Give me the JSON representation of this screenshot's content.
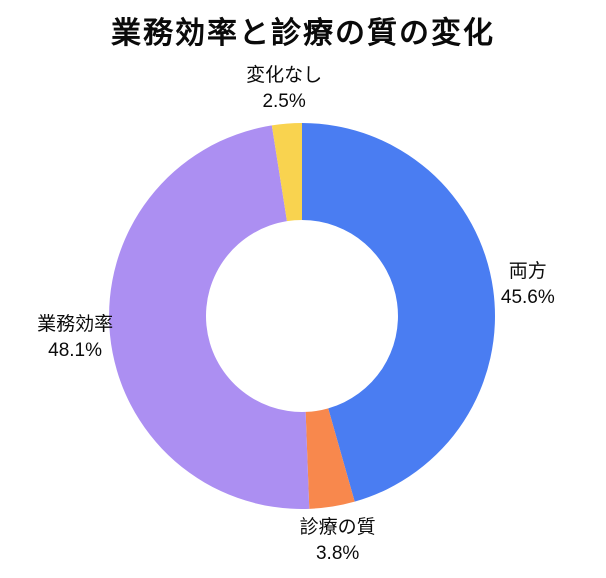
{
  "chart_data": {
    "type": "pie",
    "subtype": "donut",
    "title": "業務効率と診療の質の変化",
    "start_angle_deg": 90,
    "direction": "clockwise",
    "background": "#ffffff",
    "label_color": "#0b0b0b",
    "legend": "none",
    "segments": [
      {
        "key": "both",
        "label": "両方",
        "value": 45.6,
        "pct_label": "45.6%",
        "color": "#4A7DF2"
      },
      {
        "key": "care-quality",
        "label": "診療の質",
        "value": 3.8,
        "pct_label": "3.8%",
        "color": "#F8884D"
      },
      {
        "key": "efficiency",
        "label": "業務効率",
        "value": 48.1,
        "pct_label": "48.1%",
        "color": "#AC8FF2"
      },
      {
        "key": "no-change",
        "label": "変化なし",
        "value": 2.5,
        "pct_label": "2.5%",
        "color": "#F9D34F"
      }
    ]
  }
}
